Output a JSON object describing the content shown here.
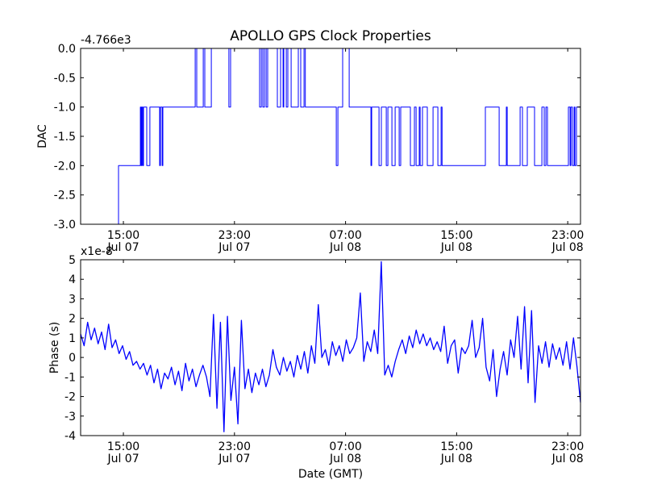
{
  "title": "APOLLO GPS Clock Properties",
  "line_color": "#0000ff",
  "chart_data": [
    {
      "type": "line",
      "step": true,
      "ylabel": "DAC",
      "offset_text": "-4.766e3",
      "ylim": [
        -3.0,
        0.0
      ],
      "yticks": [
        0.0,
        -0.5,
        -1.0,
        -1.5,
        -2.0,
        -2.5,
        -3.0
      ],
      "ytick_labels": [
        "0.0",
        "-0.5",
        "-1.0",
        "-1.5",
        "-2.0",
        "-2.5",
        "-3.0"
      ],
      "xlim_hours_from_jul07_0000": [
        11.92,
        47.92
      ],
      "xticks": [
        15,
        23,
        31,
        39,
        47
      ],
      "xtick_labels": [
        [
          "15:00",
          "Jul 07"
        ],
        [
          "23:00",
          "Jul 07"
        ],
        [
          "07:00",
          "Jul 08"
        ],
        [
          "15:00",
          "Jul 08"
        ],
        [
          "23:00",
          "Jul 08"
        ]
      ],
      "steps": [
        [
          11.92,
          -3
        ],
        [
          14.65,
          -2
        ],
        [
          16.22,
          -1
        ],
        [
          16.28,
          -2
        ],
        [
          16.33,
          -1
        ],
        [
          16.39,
          -2
        ],
        [
          16.45,
          -1
        ],
        [
          16.68,
          -2
        ],
        [
          16.91,
          -1
        ],
        [
          17.61,
          -2
        ],
        [
          17.67,
          -1
        ],
        [
          17.79,
          -2
        ],
        [
          17.84,
          -1
        ],
        [
          20.17,
          0
        ],
        [
          20.28,
          -1
        ],
        [
          20.75,
          0
        ],
        [
          20.86,
          -1
        ],
        [
          21.33,
          0
        ],
        [
          22.6,
          -1
        ],
        [
          22.72,
          0
        ],
        [
          24.81,
          -1
        ],
        [
          24.93,
          0
        ],
        [
          25.04,
          -1
        ],
        [
          25.16,
          0
        ],
        [
          25.28,
          -1
        ],
        [
          25.39,
          0
        ],
        [
          26.09,
          -1
        ],
        [
          26.32,
          0
        ],
        [
          26.5,
          -1
        ],
        [
          26.55,
          0
        ],
        [
          26.73,
          -1
        ],
        [
          26.84,
          0
        ],
        [
          27.08,
          -1
        ],
        [
          27.6,
          0
        ],
        [
          27.77,
          -1
        ],
        [
          28.01,
          0
        ],
        [
          28.1,
          -1
        ],
        [
          30.33,
          -2
        ],
        [
          30.45,
          -1
        ],
        [
          30.79,
          0
        ],
        [
          31.26,
          -1
        ],
        [
          32.83,
          -2
        ],
        [
          32.88,
          -1
        ],
        [
          33.41,
          -2
        ],
        [
          33.58,
          -1
        ],
        [
          33.93,
          -2
        ],
        [
          34.05,
          -1
        ],
        [
          34.34,
          -2
        ],
        [
          34.57,
          -1
        ],
        [
          34.86,
          -2
        ],
        [
          34.97,
          -1
        ],
        [
          35.67,
          -2
        ],
        [
          35.96,
          -1
        ],
        [
          36.08,
          -2
        ],
        [
          36.31,
          -1
        ],
        [
          36.37,
          -2
        ],
        [
          36.54,
          -1
        ],
        [
          36.89,
          -2
        ],
        [
          37.3,
          -1
        ],
        [
          37.65,
          -2
        ],
        [
          37.88,
          -1
        ],
        [
          37.95,
          -2
        ],
        [
          41.07,
          -1
        ],
        [
          42.06,
          -2
        ],
        [
          42.58,
          -1
        ],
        [
          42.64,
          -2
        ],
        [
          43.57,
          -1
        ],
        [
          43.74,
          -2
        ],
        [
          44.09,
          -1
        ],
        [
          44.61,
          -2
        ],
        [
          45.14,
          -1
        ],
        [
          45.31,
          -2
        ],
        [
          45.43,
          -1
        ],
        [
          45.54,
          -2
        ],
        [
          47.05,
          -1
        ],
        [
          47.17,
          -2
        ],
        [
          47.23,
          -1
        ],
        [
          47.34,
          -2
        ],
        [
          47.46,
          -1
        ],
        [
          47.52,
          -2
        ],
        [
          47.63,
          -1
        ]
      ]
    },
    {
      "type": "line",
      "ylabel": "Phase (s)",
      "xlabel": "Date (GMT)",
      "offset_text": "x1e-8",
      "ylim": [
        -4,
        5
      ],
      "yticks": [
        5,
        4,
        3,
        2,
        1,
        0,
        -1,
        -2,
        -3,
        -4
      ],
      "ytick_labels": [
        "5",
        "4",
        "3",
        "2",
        "1",
        "0",
        "-1",
        "-2",
        "-3",
        "-4"
      ],
      "xlim_hours_from_jul07_0000": [
        11.92,
        47.92
      ],
      "xticks": [
        15,
        23,
        31,
        39,
        47
      ],
      "xtick_labels": [
        [
          "15:00",
          "Jul 07"
        ],
        [
          "23:00",
          "Jul 07"
        ],
        [
          "07:00",
          "Jul 08"
        ],
        [
          "15:00",
          "Jul 08"
        ],
        [
          "23:00",
          "Jul 08"
        ]
      ],
      "values_1e-8": [
        1.2,
        0.6,
        1.8,
        0.9,
        1.5,
        0.7,
        1.3,
        0.4,
        1.7,
        0.5,
        0.9,
        0.2,
        0.6,
        -0.1,
        0.3,
        -0.4,
        -0.2,
        -0.6,
        -0.3,
        -0.9,
        -0.4,
        -1.3,
        -0.6,
        -1.6,
        -0.8,
        -1.1,
        -0.5,
        -1.4,
        -0.7,
        -1.7,
        -0.3,
        -1.2,
        -0.6,
        -1.5,
        -0.9,
        -0.4,
        -1.0,
        -2.0,
        2.2,
        -2.6,
        1.8,
        -3.8,
        2.1,
        -2.2,
        -0.5,
        -3.4,
        1.9,
        -1.6,
        -0.6,
        -1.8,
        -0.8,
        -1.4,
        -0.6,
        -1.5,
        -0.9,
        0.4,
        -0.5,
        -0.9,
        0.0,
        -0.7,
        -0.2,
        -1.0,
        0.1,
        -0.6,
        0.3,
        -0.8,
        0.6,
        -0.3,
        2.7,
        0.0,
        0.4,
        -0.4,
        0.8,
        0.1,
        0.6,
        -0.2,
        0.9,
        0.2,
        0.5,
        1.0,
        3.3,
        -0.2,
        0.8,
        0.3,
        1.4,
        0.2,
        4.9,
        -0.9,
        -0.4,
        -1.0,
        -0.2,
        0.4,
        0.9,
        0.2,
        1.1,
        0.5,
        1.4,
        0.7,
        1.2,
        0.6,
        1.0,
        0.4,
        0.8,
        0.3,
        1.6,
        -0.3,
        0.6,
        0.9,
        -0.8,
        0.5,
        0.2,
        0.6,
        1.9,
        0.0,
        0.5,
        2.0,
        -0.5,
        -1.2,
        0.4,
        -2.0,
        -0.6,
        0.3,
        -0.9,
        0.9,
        0.0,
        2.1,
        -0.6,
        2.6,
        -1.3,
        2.4,
        -2.3,
        0.6,
        -0.3,
        0.8,
        -0.5,
        0.7,
        -0.1,
        0.5,
        -0.4,
        0.8,
        -0.6,
        1.0,
        -0.5,
        -2.3
      ]
    }
  ]
}
